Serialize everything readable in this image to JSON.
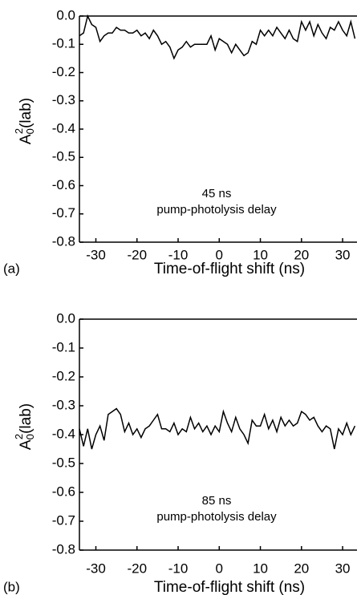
{
  "chart_data": [
    {
      "type": "line",
      "panel_label": "(a)",
      "xlabel": "Time-of-flight shift (ns)",
      "ylabel_parts": [
        "A",
        "0",
        "2",
        "(lab)"
      ],
      "annotation": [
        "45 ns",
        "pump-photolysis delay"
      ],
      "x": [
        -34,
        -33,
        -32,
        -31,
        -30,
        -29,
        -28,
        -27,
        -26,
        -25,
        -24,
        -23,
        -22,
        -21,
        -20,
        -19,
        -18,
        -17,
        -16,
        -15,
        -14,
        -13,
        -12,
        -11,
        -10,
        -9,
        -8,
        -7,
        -6,
        -5,
        -4,
        -3,
        -2,
        -1,
        0,
        1,
        2,
        3,
        4,
        5,
        6,
        7,
        8,
        9,
        10,
        11,
        12,
        13,
        14,
        15,
        16,
        17,
        18,
        19,
        20,
        21,
        22,
        23,
        24,
        25,
        26,
        27,
        28,
        29,
        30,
        31,
        32,
        33
      ],
      "series": [
        {
          "color": "#000000",
          "values": [
            -0.07,
            -0.06,
            0.0,
            -0.03,
            -0.04,
            -0.09,
            -0.07,
            -0.06,
            -0.06,
            -0.04,
            -0.05,
            -0.05,
            -0.06,
            -0.06,
            -0.05,
            -0.07,
            -0.06,
            -0.08,
            -0.05,
            -0.07,
            -0.1,
            -0.09,
            -0.11,
            -0.15,
            -0.12,
            -0.11,
            -0.09,
            -0.11,
            -0.1,
            -0.1,
            -0.1,
            -0.1,
            -0.07,
            -0.12,
            -0.08,
            -0.09,
            -0.1,
            -0.13,
            -0.1,
            -0.12,
            -0.14,
            -0.13,
            -0.09,
            -0.1,
            -0.05,
            -0.07,
            -0.05,
            -0.07,
            -0.04,
            -0.06,
            -0.08,
            -0.05,
            -0.08,
            -0.09,
            -0.02,
            -0.05,
            -0.02,
            -0.07,
            -0.03,
            -0.06,
            -0.08,
            -0.04,
            -0.05,
            -0.02,
            -0.05,
            -0.07,
            -0.02,
            -0.08
          ]
        }
      ],
      "xlim": [
        -34,
        33.5
      ],
      "xticks": [
        -30,
        -20,
        -10,
        0,
        10,
        20,
        30
      ],
      "ylim": [
        -0.8,
        0
      ],
      "yticks": [
        {
          "value": 0,
          "label": "0.0"
        },
        -0.1,
        -0.2,
        -0.3,
        -0.4,
        -0.5,
        -0.6,
        -0.7,
        -0.8
      ]
    },
    {
      "type": "line",
      "panel_label": "(b)",
      "xlabel": "Time-of-flight shift (ns)",
      "ylabel_parts": [
        "A",
        "0",
        "2",
        "(lab)"
      ],
      "annotation": [
        "85 ns",
        "pump-photolysis delay"
      ],
      "x": [
        -34,
        -33,
        -32,
        -31,
        -30,
        -29,
        -28,
        -27,
        -26,
        -25,
        -24,
        -23,
        -22,
        -21,
        -20,
        -19,
        -18,
        -17,
        -16,
        -15,
        -14,
        -13,
        -12,
        -11,
        -10,
        -9,
        -8,
        -7,
        -6,
        -5,
        -4,
        -3,
        -2,
        -1,
        0,
        1,
        2,
        3,
        4,
        5,
        6,
        7,
        8,
        9,
        10,
        11,
        12,
        13,
        14,
        15,
        16,
        17,
        18,
        19,
        20,
        21,
        22,
        23,
        24,
        25,
        26,
        27,
        28,
        29,
        30,
        31,
        32,
        33
      ],
      "series": [
        {
          "color": "#000000",
          "values": [
            -0.38,
            -0.44,
            -0.38,
            -0.45,
            -0.4,
            -0.37,
            -0.42,
            -0.33,
            -0.32,
            -0.31,
            -0.33,
            -0.39,
            -0.36,
            -0.4,
            -0.38,
            -0.41,
            -0.38,
            -0.37,
            -0.35,
            -0.33,
            -0.38,
            -0.38,
            -0.39,
            -0.36,
            -0.4,
            -0.38,
            -0.39,
            -0.34,
            -0.38,
            -0.36,
            -0.39,
            -0.37,
            -0.4,
            -0.37,
            -0.39,
            -0.32,
            -0.36,
            -0.39,
            -0.34,
            -0.38,
            -0.4,
            -0.43,
            -0.35,
            -0.37,
            -0.37,
            -0.33,
            -0.38,
            -0.35,
            -0.39,
            -0.34,
            -0.37,
            -0.35,
            -0.37,
            -0.36,
            -0.32,
            -0.33,
            -0.35,
            -0.34,
            -0.37,
            -0.39,
            -0.37,
            -0.38,
            -0.45,
            -0.38,
            -0.4,
            -0.36,
            -0.4,
            -0.37
          ]
        }
      ],
      "xlim": [
        -34,
        33.5
      ],
      "xticks": [
        -30,
        -20,
        -10,
        0,
        10,
        20,
        30
      ],
      "ylim": [
        -0.8,
        0
      ],
      "yticks": [
        {
          "value": 0,
          "label": "0.0"
        },
        -0.1,
        -0.2,
        -0.3,
        -0.4,
        -0.5,
        -0.6,
        -0.7,
        -0.8
      ]
    }
  ]
}
